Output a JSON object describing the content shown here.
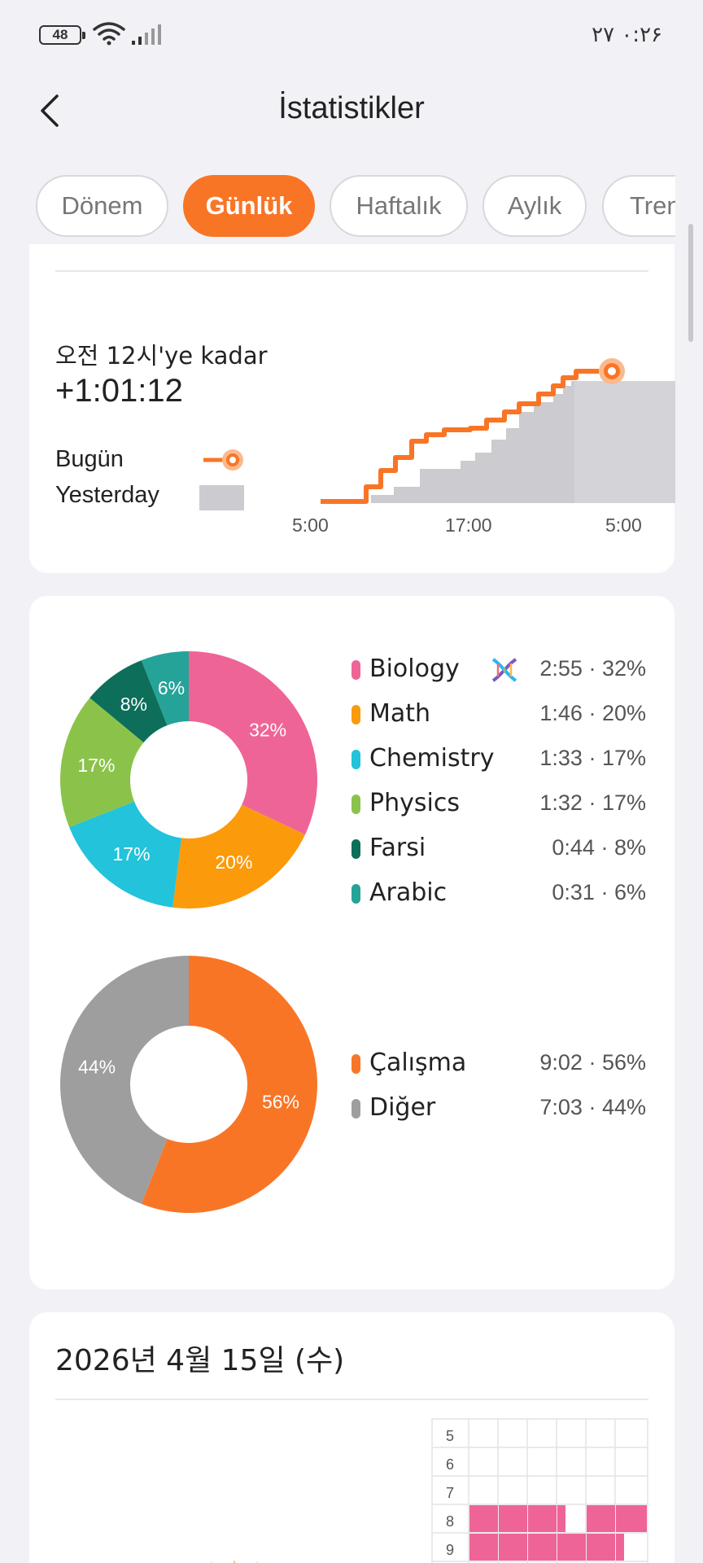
{
  "status_bar": {
    "battery": "48",
    "clock": "۰:۲۶  ۲۷",
    "wifi_icon": "wifi-icon",
    "signal_icon": "signal-icon"
  },
  "header": {
    "title": "İstatistikler",
    "back_icon": "chevron-left-icon"
  },
  "tabs": [
    {
      "label": "Dönem",
      "active": false
    },
    {
      "label": "Günlük",
      "active": true
    },
    {
      "label": "Haftalık",
      "active": false
    },
    {
      "label": "Aylık",
      "active": false
    },
    {
      "label": "Trend",
      "active": false
    }
  ],
  "progress_card": {
    "until_label": "오전 12시'ye kadar",
    "diff_value": "+1:01:12",
    "legend_today": "Bugün",
    "legend_yesterday": "Yesterday",
    "x_ticks": [
      "5:00",
      "17:00",
      "5:00"
    ],
    "colors": {
      "today": "#f97526",
      "yesterday": "#cbcbd0"
    }
  },
  "subjects": [
    {
      "name": "Biology",
      "time": "2:55",
      "percent": 32,
      "color": "#ef6497",
      "emoji": "dna-icon"
    },
    {
      "name": "Math",
      "time": "1:46",
      "percent": 20,
      "color": "#fb9a0b"
    },
    {
      "name": "Chemistry",
      "time": "1:33",
      "percent": 17,
      "color": "#22c3db"
    },
    {
      "name": "Physics",
      "time": "1:32",
      "percent": 17,
      "color": "#8bc34a"
    },
    {
      "name": "Farsi",
      "time": "0:44",
      "percent": 8,
      "color": "#0d6e5a"
    },
    {
      "name": "Arabic",
      "time": "0:31",
      "percent": 6,
      "color": "#26a398"
    }
  ],
  "activity": [
    {
      "name": "Çalışma",
      "time": "9:02",
      "percent": 56,
      "color": "#f97526"
    },
    {
      "name": "Diğer",
      "time": "7:03",
      "percent": 44,
      "color": "#9e9e9e"
    }
  ],
  "day_card": {
    "date_title": "2026년 4월 15일 (수)",
    "hours": [
      "5",
      "6",
      "7",
      "8",
      "9"
    ],
    "block_color": "#ef6497"
  }
}
